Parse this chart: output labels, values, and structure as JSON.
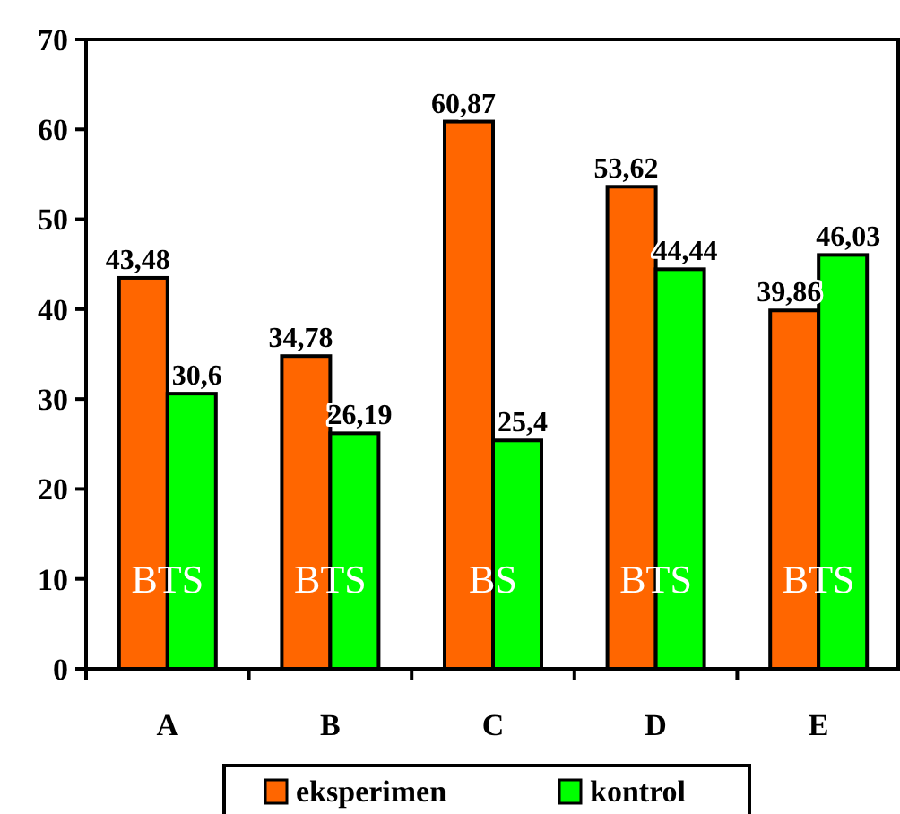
{
  "chart_data": {
    "type": "bar",
    "categories": [
      "A",
      "B",
      "C",
      "D",
      "E"
    ],
    "series": [
      {
        "name": "eksperimen",
        "color": "#ff6600",
        "values": [
          43.48,
          34.78,
          60.87,
          53.62,
          39.86
        ],
        "value_labels": [
          "43,48",
          "34,78",
          "60,87",
          "53,62",
          "39,86"
        ]
      },
      {
        "name": "kontrol",
        "color": "#00ff00",
        "values": [
          30.6,
          26.19,
          25.4,
          44.44,
          46.03
        ],
        "value_labels": [
          "30,6",
          "26,19",
          "25,4",
          "44,44",
          "46,03"
        ]
      }
    ],
    "ylim": [
      0,
      70
    ],
    "yticks": [
      0,
      10,
      20,
      30,
      40,
      50,
      60,
      70
    ],
    "grid": false,
    "legend": "bottom",
    "annotations": [
      {
        "text": "BTS",
        "x": "A",
        "y": 10
      },
      {
        "text": "BTS",
        "x": "B",
        "y": 10
      },
      {
        "text": "BS",
        "x": "C",
        "y": 10
      },
      {
        "text": "BTS",
        "x": "D",
        "y": 10
      },
      {
        "text": "BTS",
        "x": "E",
        "y": 10
      }
    ]
  }
}
